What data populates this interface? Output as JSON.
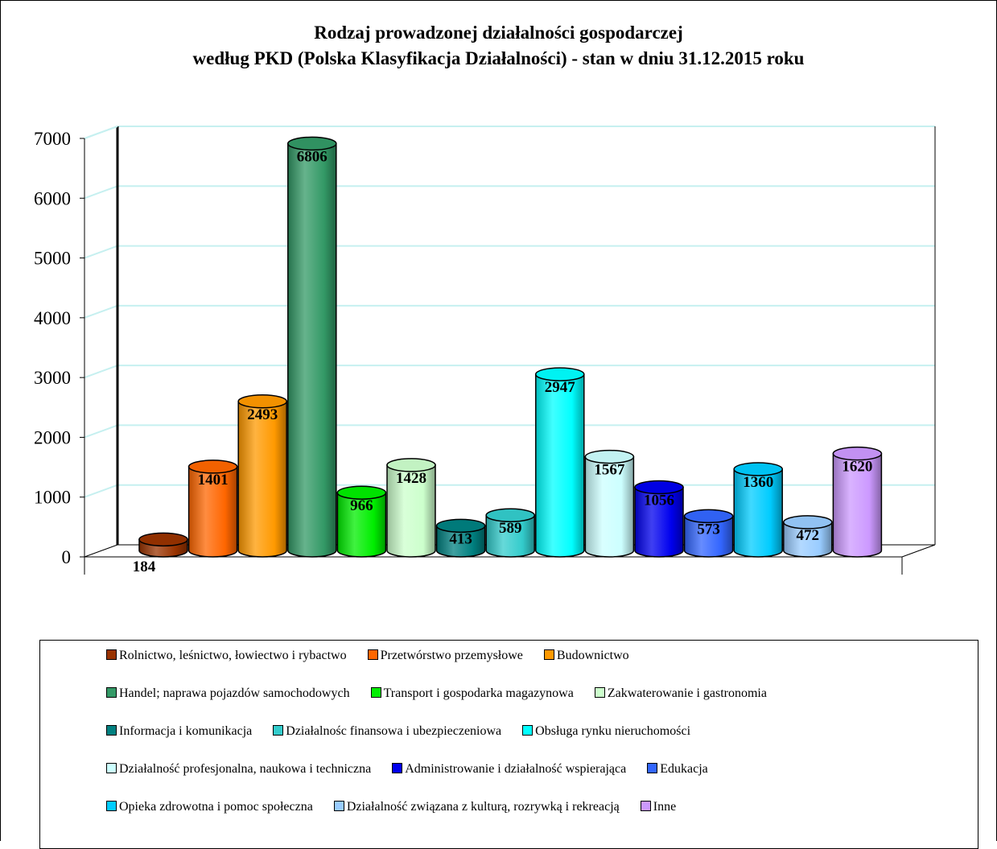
{
  "chart_data": {
    "type": "bar",
    "title": "Rodzaj prowadzonej działalności gospodarczej",
    "subtitle": "według PKD (Polska Klasyfikacja Działalności) - stan  w dniu 31.12.2015 roku",
    "ylim": [
      0,
      7000
    ],
    "yticks": [
      "0",
      "1000",
      "2000",
      "3000",
      "4000",
      "5000",
      "6000",
      "7000"
    ],
    "grid": true,
    "legend_position": "bottom",
    "categories": [
      "Rolnictwo, leśnictwo, łowiectwo i rybactwo",
      "Przetwórstwo przemysłowe",
      "Budownictwo",
      "Handel; naprawa pojazdów samochodowych",
      "Transport i gospodarka magazynowa",
      "Zakwaterowanie i gastronomia",
      "Informacja i komunikacja",
      "Działalnośc finansowa i ubezpieczeniowa",
      "Obsługa rynku nieruchomości",
      "Działalność profesjonalna, naukowa i techniczna",
      "Administrowanie i działalność wspierająca",
      "Edukacja",
      "Opieka zdrowotna i pomoc społeczna",
      "Działalność związana z kulturą, rozrywką i rekreacją",
      "Inne"
    ],
    "values": [
      184,
      1401,
      2493,
      6806,
      966,
      1428,
      413,
      589,
      2947,
      1567,
      1056,
      573,
      1360,
      472,
      1620
    ],
    "value_labels": [
      "184",
      "1401",
      "2493",
      "6806",
      "966",
      "1428",
      "413",
      "589",
      "2947",
      "1567",
      "1056",
      "573",
      "1360",
      "472",
      "1620"
    ],
    "colors": [
      "#993300",
      "#FF6600",
      "#FF9900",
      "#339966",
      "#00EE00",
      "#CCFFCC",
      "#008080",
      "#33CCCC",
      "#00FFFF",
      "#CCFFFF",
      "#0000EE",
      "#3366FF",
      "#00CCFF",
      "#99CCFF",
      "#CC99FF"
    ]
  }
}
